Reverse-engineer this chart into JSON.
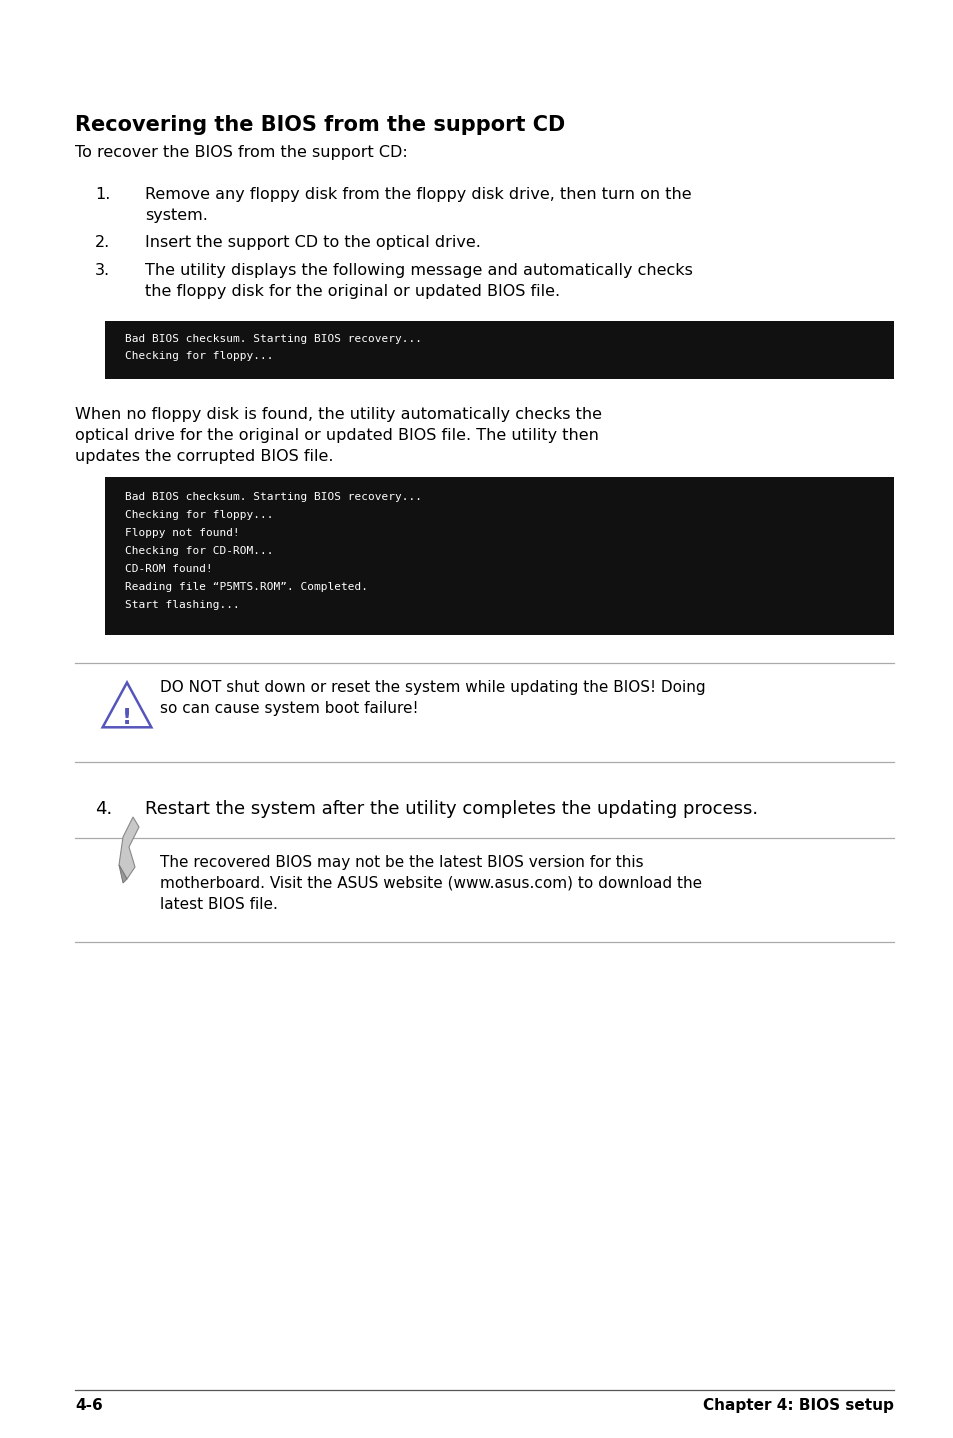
{
  "bg_color": "#ffffff",
  "title": "Recovering the BIOS from the support CD",
  "subtitle": "To recover the BIOS from the support CD:",
  "step1_num": "1.",
  "step1": "Remove any floppy disk from the floppy disk drive, then turn on the\nsystem.",
  "step2_num": "2.",
  "step2": "Insert the support CD to the optical drive.",
  "step3_num": "3.",
  "step3": "The utility displays the following message and automatically checks\nthe floppy disk for the original or updated BIOS file.",
  "code_box1_lines": [
    "Bad BIOS checksum. Starting BIOS recovery...",
    "Checking for floppy..."
  ],
  "para_between": "When no floppy disk is found, the utility automatically checks the\noptical drive for the original or updated BIOS file. The utility then\nupdates the corrupted BIOS file.",
  "code_box2_lines": [
    "Bad BIOS checksum. Starting BIOS recovery...",
    "Checking for floppy...",
    "Floppy not found!",
    "Checking for CD-ROM...",
    "CD-ROM found!",
    "Reading file “P5MTS.ROM”. Completed.",
    "Start flashing..."
  ],
  "warning_text": "DO NOT shut down or reset the system while updating the BIOS! Doing\nso can cause system boot failure!",
  "step4_num": "4.",
  "step4": "Restart the system after the utility completes the updating process.",
  "note_text": "The recovered BIOS may not be the latest BIOS version for this\nmotherboard. Visit the ASUS website (www.asus.com) to download the\nlatest BIOS file.",
  "footer_left": "4-6",
  "footer_right": "Chapter 4: BIOS setup",
  "code_bg": "#111111",
  "code_fg": "#ffffff",
  "text_color": "#000000",
  "warn_icon_color": "#5555bb",
  "line_color": "#aaaaaa",
  "footer_line_color": "#555555"
}
